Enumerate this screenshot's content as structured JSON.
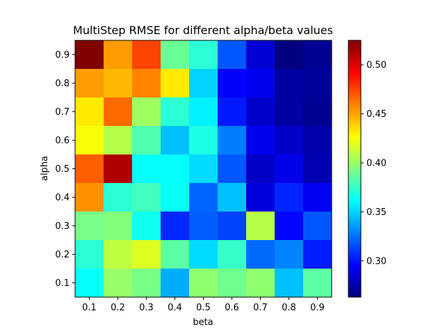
{
  "chart_data": {
    "type": "heatmap",
    "title": "MultiStep RMSE for different alpha/beta values",
    "xlabel": "beta",
    "ylabel": "alpha",
    "x_categories": [
      "0.1",
      "0.2",
      "0.3",
      "0.4",
      "0.5",
      "0.6",
      "0.7",
      "0.8",
      "0.9"
    ],
    "y_categories": [
      "0.1",
      "0.2",
      "0.3",
      "0.4",
      "0.5",
      "0.6",
      "0.7",
      "0.8",
      "0.9"
    ],
    "colormap": "jet",
    "vmin": 0.263,
    "vmax": 0.525,
    "colorbar_ticks": [
      0.3,
      0.35,
      0.4,
      0.45,
      0.5
    ],
    "colorbar_tick_labels": [
      "0.30",
      "0.35",
      "0.40",
      "0.45",
      "0.50"
    ],
    "grid": false,
    "values_by_alpha": [
      {
        "alpha": "0.9",
        "values": [
          0.525,
          0.452,
          0.475,
          0.388,
          0.372,
          0.318,
          0.285,
          0.263,
          0.268
        ]
      },
      {
        "alpha": "0.8",
        "values": [
          0.452,
          0.445,
          0.458,
          0.432,
          0.35,
          0.295,
          0.292,
          0.272,
          0.27
        ]
      },
      {
        "alpha": "0.7",
        "values": [
          0.432,
          0.465,
          0.402,
          0.372,
          0.358,
          0.302,
          0.283,
          0.272,
          0.268
        ]
      },
      {
        "alpha": "0.6",
        "values": [
          0.425,
          0.408,
          0.382,
          0.345,
          0.368,
          0.328,
          0.292,
          0.282,
          0.274
        ]
      },
      {
        "alpha": "0.5",
        "values": [
          0.468,
          0.513,
          0.362,
          0.362,
          0.352,
          0.318,
          0.282,
          0.29,
          0.276
        ]
      },
      {
        "alpha": "0.4",
        "values": [
          0.455,
          0.372,
          0.378,
          0.363,
          0.322,
          0.345,
          0.287,
          0.305,
          0.293
        ]
      },
      {
        "alpha": "0.3",
        "values": [
          0.392,
          0.395,
          0.365,
          0.306,
          0.32,
          0.313,
          0.408,
          0.297,
          0.318
        ]
      },
      {
        "alpha": "0.2",
        "values": [
          0.372,
          0.41,
          0.418,
          0.385,
          0.352,
          0.375,
          0.323,
          0.33,
          0.303
        ]
      },
      {
        "alpha": "0.1",
        "values": [
          0.362,
          0.4,
          0.392,
          0.34,
          0.398,
          0.39,
          0.398,
          0.345,
          0.385
        ]
      }
    ]
  }
}
